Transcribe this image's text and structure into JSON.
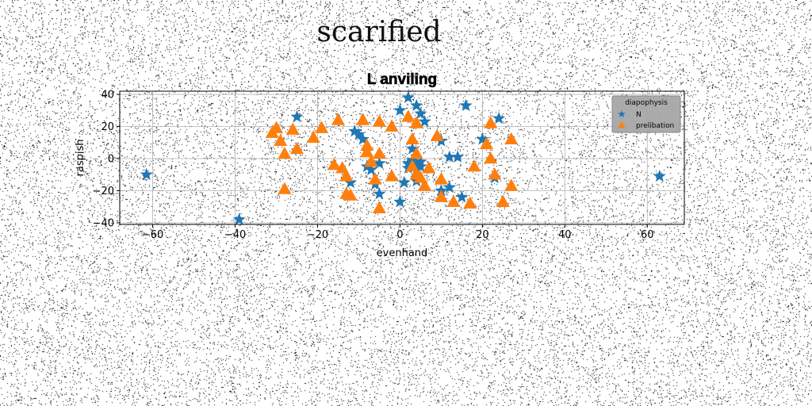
{
  "figure": {
    "suptitle": "scarified"
  },
  "chart_data": {
    "type": "scatter",
    "title": "L anviling",
    "xlabel": "evenhand",
    "ylabel": "raspish",
    "xlim": [
      -68,
      69
    ],
    "ylim": [
      -41,
      42
    ],
    "xticks": [
      -60,
      -40,
      -20,
      0,
      20,
      40,
      60
    ],
    "yticks": [
      -40,
      -20,
      0,
      20,
      40
    ],
    "grid": true,
    "legend": {
      "title": "diapophysis",
      "placement": "top-right"
    },
    "series": [
      {
        "name": "N",
        "marker": "star",
        "color": "#1f77b4",
        "points": [
          [
            -61.5,
            -10
          ],
          [
            -39,
            -38
          ],
          [
            -25,
            26
          ],
          [
            -12,
            -15
          ],
          [
            -11,
            17
          ],
          [
            -10,
            15
          ],
          [
            -9,
            12
          ],
          [
            -8,
            -5
          ],
          [
            -7,
            -7
          ],
          [
            -6,
            -16
          ],
          [
            -5,
            -3
          ],
          [
            -5,
            -22
          ],
          [
            0,
            -27
          ],
          [
            0,
            30
          ],
          [
            1,
            -15
          ],
          [
            2,
            38
          ],
          [
            2,
            -3
          ],
          [
            2,
            -6
          ],
          [
            3,
            6
          ],
          [
            3,
            -1
          ],
          [
            4,
            33
          ],
          [
            4,
            -14
          ],
          [
            4,
            -7
          ],
          [
            4,
            -4
          ],
          [
            5,
            28
          ],
          [
            5,
            -5
          ],
          [
            5,
            -2
          ],
          [
            6,
            23
          ],
          [
            10,
            11
          ],
          [
            10,
            -20
          ],
          [
            12,
            -18
          ],
          [
            12,
            1
          ],
          [
            14,
            1
          ],
          [
            15,
            -24
          ],
          [
            16,
            33
          ],
          [
            20,
            12
          ],
          [
            24,
            25
          ],
          [
            23,
            -12
          ],
          [
            63,
            -11
          ]
        ]
      },
      {
        "name": "prelibation",
        "marker": "triangle",
        "color": "#ff7f0e",
        "points": [
          [
            -31,
            16
          ],
          [
            -30,
            19
          ],
          [
            -29,
            11
          ],
          [
            -28,
            3
          ],
          [
            -28,
            -19
          ],
          [
            -26,
            18
          ],
          [
            -25,
            6
          ],
          [
            -21,
            13
          ],
          [
            -19,
            19
          ],
          [
            -16,
            -4
          ],
          [
            -15,
            24
          ],
          [
            -14,
            -6
          ],
          [
            -13,
            -11
          ],
          [
            -13,
            -22
          ],
          [
            -12,
            -23
          ],
          [
            -9,
            24
          ],
          [
            -8,
            4
          ],
          [
            -8,
            8
          ],
          [
            -7,
            -2
          ],
          [
            -6,
            -13
          ],
          [
            -5,
            23
          ],
          [
            -5,
            3
          ],
          [
            -5,
            -31
          ],
          [
            -2,
            -11
          ],
          [
            -2,
            20
          ],
          [
            2,
            26
          ],
          [
            3,
            12
          ],
          [
            3,
            -5
          ],
          [
            4,
            22
          ],
          [
            4,
            3
          ],
          [
            4,
            -10
          ],
          [
            5,
            -12
          ],
          [
            6,
            -17
          ],
          [
            7,
            -6
          ],
          [
            9,
            14
          ],
          [
            10,
            -13
          ],
          [
            10,
            -24
          ],
          [
            13,
            -27
          ],
          [
            17,
            -28
          ],
          [
            18,
            -5
          ],
          [
            21,
            9
          ],
          [
            22,
            0
          ],
          [
            22,
            22
          ],
          [
            23,
            -10
          ],
          [
            25,
            -27
          ],
          [
            27,
            12
          ],
          [
            27,
            -17
          ]
        ]
      }
    ]
  }
}
